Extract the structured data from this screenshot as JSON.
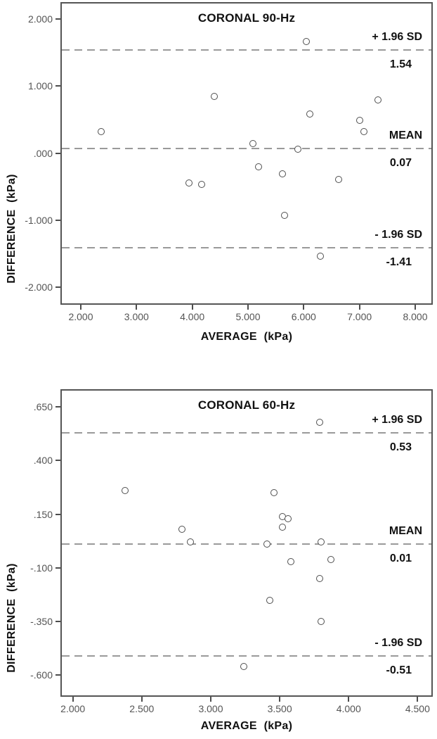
{
  "figure": {
    "description": "Bland-Altman agreement plots, coronal MR elastography at 90 Hz and 60 Hz",
    "background": "#ffffff",
    "frame_color": "#555555",
    "refline_color": "#9a9a9a",
    "point_stroke": "#4f4f4f",
    "tick_label_color": "#545454",
    "text_color": "#111111"
  },
  "chart_data": [
    {
      "type": "scatter",
      "title": "CORONAL 90-Hz",
      "xlabel": "AVERAGE  (kPa)",
      "ylabel": "DIFFERENCE  (kPa)",
      "xlim": [
        1.66,
        8.29
      ],
      "ylim": [
        -2.24,
        2.23
      ],
      "grid": false,
      "x_ticks": [
        {
          "value": 2,
          "label": "2.000"
        },
        {
          "value": 3,
          "label": "3.000"
        },
        {
          "value": 4,
          "label": "4.000"
        },
        {
          "value": 5,
          "label": "5.000"
        },
        {
          "value": 6,
          "label": "6.000"
        },
        {
          "value": 7,
          "label": "7.000"
        },
        {
          "value": 8,
          "label": "8.000"
        }
      ],
      "y_ticks": [
        {
          "value": 2,
          "label": "2.000"
        },
        {
          "value": 1,
          "label": "1.000"
        },
        {
          "value": 0,
          "label": ".000"
        },
        {
          "value": -1,
          "label": "-1.000"
        },
        {
          "value": -2,
          "label": "-2.000"
        }
      ],
      "ref_lines": [
        {
          "value": 1.54,
          "label_above": "+ 1.96 SD",
          "label_below": "1.54"
        },
        {
          "value": 0.07,
          "label_above": "MEAN",
          "label_below": "0.07"
        },
        {
          "value": -1.41,
          "label_above": "- 1.96 SD",
          "label_below": "-1.41"
        }
      ],
      "points": [
        [
          2.37,
          0.32
        ],
        [
          3.94,
          -0.45
        ],
        [
          4.17,
          -0.47
        ],
        [
          4.4,
          0.85
        ],
        [
          5.09,
          0.14
        ],
        [
          5.19,
          -0.2
        ],
        [
          5.62,
          -0.31
        ],
        [
          5.66,
          -0.93
        ],
        [
          5.89,
          0.06
        ],
        [
          6.05,
          1.66
        ],
        [
          6.11,
          0.58
        ],
        [
          6.3,
          -1.54
        ],
        [
          6.62,
          -0.39
        ],
        [
          7.0,
          0.49
        ],
        [
          7.08,
          0.32
        ],
        [
          7.33,
          0.79
        ]
      ]
    },
    {
      "type": "scatter",
      "title": "CORONAL 60-Hz",
      "xlabel": "AVERAGE  (kPa)",
      "ylabel": "DIFFERENCE  (kPa)",
      "xlim": [
        1.92,
        4.6
      ],
      "ylim": [
        -0.694,
        0.726
      ],
      "grid": false,
      "x_ticks": [
        {
          "value": 2.0,
          "label": "2.000"
        },
        {
          "value": 2.5,
          "label": "2.500"
        },
        {
          "value": 3.0,
          "label": "3.000"
        },
        {
          "value": 3.5,
          "label": "3.500"
        },
        {
          "value": 4.0,
          "label": "4.000"
        },
        {
          "value": 4.5,
          "label": "4.500"
        }
      ],
      "y_ticks": [
        {
          "value": 0.65,
          "label": ".650"
        },
        {
          "value": 0.4,
          "label": ".400"
        },
        {
          "value": 0.15,
          "label": ".150"
        },
        {
          "value": -0.1,
          "label": "-.100"
        },
        {
          "value": -0.35,
          "label": "-.350"
        },
        {
          "value": -0.6,
          "label": "-.600"
        }
      ],
      "ref_lines": [
        {
          "value": 0.53,
          "label_above": "+ 1.96 SD",
          "label_below": "0.53"
        },
        {
          "value": 0.01,
          "label_above": "MEAN",
          "label_below": "0.01"
        },
        {
          "value": -0.51,
          "label_above": "- 1.96 SD",
          "label_below": "-0.51"
        }
      ],
      "points": [
        [
          2.38,
          0.26
        ],
        [
          2.79,
          0.08
        ],
        [
          2.85,
          0.02
        ],
        [
          3.24,
          -0.56
        ],
        [
          3.41,
          0.01
        ],
        [
          3.43,
          -0.25
        ],
        [
          3.46,
          0.25
        ],
        [
          3.52,
          0.14
        ],
        [
          3.52,
          0.09
        ],
        [
          3.56,
          0.13
        ],
        [
          3.58,
          -0.07
        ],
        [
          3.79,
          0.58
        ],
        [
          3.79,
          -0.15
        ],
        [
          3.8,
          0.02
        ],
        [
          3.8,
          -0.35
        ],
        [
          3.87,
          -0.06
        ]
      ]
    }
  ]
}
